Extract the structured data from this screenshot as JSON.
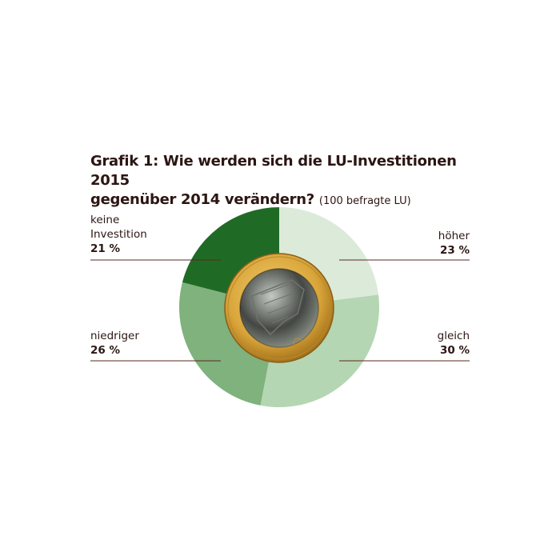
{
  "title": {
    "line1": "Grafik 1: Wie werden sich die LU-Investitionen 2015",
    "line2": "gegenüber 2014 verändern?",
    "subtitle": "(100 befragte LU)"
  },
  "colors": {
    "keine_investition": "#1f6b25",
    "niedriger": "#7fb27d",
    "gleich": "#b5d6b2",
    "hoeher": "#dcebd9",
    "leader_line": "#5a2a20",
    "coin_gold": "#d9a53a",
    "coin_silver": "#9aa39a"
  },
  "labels": {
    "keine": {
      "line1": "keine",
      "line2": "Investition",
      "pct": "21 %"
    },
    "hoeher": {
      "line1": "höher",
      "pct": "23 %"
    },
    "niedriger": {
      "line1": "niedriger",
      "pct": "26 %"
    },
    "gleich": {
      "line1": "gleich",
      "pct": "30 %"
    }
  },
  "chart_data": {
    "type": "pie",
    "title": "Grafik 1: Wie werden sich die LU-Investitionen 2015 gegenüber 2014 verändern?",
    "subtitle": "(100 befragte LU)",
    "slices": [
      {
        "label": "höher",
        "value": 23,
        "color": "#dcebd9"
      },
      {
        "label": "gleich",
        "value": 30,
        "color": "#b5d6b2"
      },
      {
        "label": "niedriger",
        "value": 26,
        "color": "#7fb27d"
      },
      {
        "label": "keine Investition",
        "value": 21,
        "color": "#1f6b25"
      }
    ],
    "start": "12 o'clock",
    "direction": "clockwise",
    "center_image": "euro-coin"
  }
}
